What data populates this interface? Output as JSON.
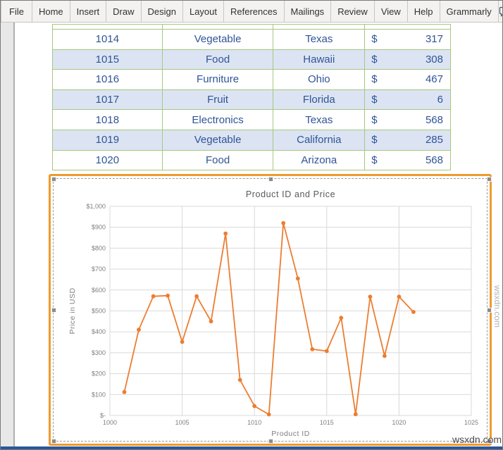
{
  "ribbon": {
    "tabs": [
      "File",
      "Home",
      "Insert",
      "Draw",
      "Design",
      "Layout",
      "References",
      "Mailings",
      "Review",
      "View",
      "Help",
      "Grammarly"
    ],
    "icons": [
      "comment-icon",
      "share-icon"
    ]
  },
  "table": {
    "currency_symbol": "$",
    "rows": [
      {
        "id": "1014",
        "category": "Vegetable",
        "state": "Texas",
        "price": "317"
      },
      {
        "id": "1015",
        "category": "Food",
        "state": "Hawaii",
        "price": "308"
      },
      {
        "id": "1016",
        "category": "Furniture",
        "state": "Ohio",
        "price": "467"
      },
      {
        "id": "1017",
        "category": "Fruit",
        "state": "Florida",
        "price": "6"
      },
      {
        "id": "1018",
        "category": "Electronics",
        "state": "Texas",
        "price": "568"
      },
      {
        "id": "1019",
        "category": "Vegetable",
        "state": "California",
        "price": "285"
      },
      {
        "id": "1020",
        "category": "Food",
        "state": "Arizona",
        "price": "568"
      }
    ]
  },
  "chart_data": {
    "type": "line",
    "title": "Product ID and Price",
    "xlabel": "Product ID",
    "ylabel": "Price in USD",
    "x": [
      1001,
      1002,
      1003,
      1004,
      1005,
      1006,
      1007,
      1008,
      1009,
      1010,
      1011,
      1012,
      1013,
      1014,
      1015,
      1016,
      1017,
      1018,
      1019,
      1020,
      1021
    ],
    "values": [
      112,
      410,
      570,
      573,
      352,
      570,
      450,
      870,
      170,
      45,
      5,
      920,
      655,
      317,
      308,
      467,
      6,
      568,
      285,
      568,
      495
    ],
    "xlim": [
      1000,
      1025
    ],
    "ylim": [
      0,
      1000
    ],
    "x_ticks": [
      1000,
      1005,
      1010,
      1015,
      1020,
      1025
    ],
    "y_tick_step": 100,
    "y_tick_labels": [
      "$-",
      "$100",
      "$200",
      "$300",
      "$400",
      "$500",
      "$600",
      "$700",
      "$800",
      "$900",
      "$1,000"
    ],
    "grid": true,
    "legend": "none",
    "series_color": "#ED7D31"
  },
  "watermark": {
    "bottom_right": "wsxdn.com",
    "right_edge": "wsxdn.com"
  },
  "colors": {
    "selection_border": "#EE9B2E",
    "table_border": "#A6C77F",
    "table_band": "#DCE4F3",
    "table_text": "#2F5496",
    "status_bar": "#2B579A",
    "gridline": "#D9D9D9",
    "axis_text": "#7F7F7F",
    "title_text": "#595959"
  }
}
